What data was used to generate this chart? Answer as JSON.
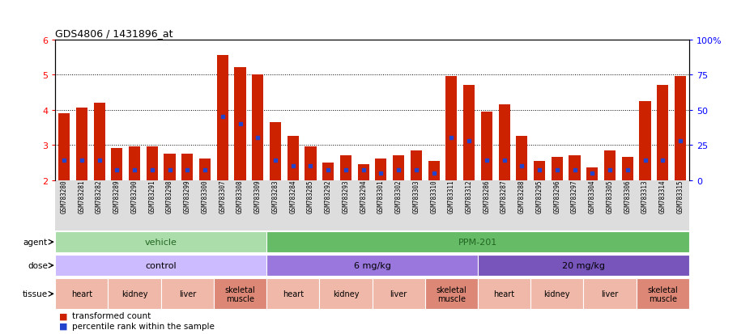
{
  "title": "GDS4806 / 1431896_at",
  "sample_ids": [
    "GSM783280",
    "GSM783281",
    "GSM783282",
    "GSM783289",
    "GSM783290",
    "GSM783291",
    "GSM783298",
    "GSM783299",
    "GSM783300",
    "GSM783307",
    "GSM783308",
    "GSM783309",
    "GSM783283",
    "GSM783284",
    "GSM783285",
    "GSM783292",
    "GSM783293",
    "GSM783294",
    "GSM783301",
    "GSM783302",
    "GSM783303",
    "GSM783310",
    "GSM783311",
    "GSM783312",
    "GSM783286",
    "GSM783287",
    "GSM783288",
    "GSM783295",
    "GSM783296",
    "GSM783297",
    "GSM783304",
    "GSM783305",
    "GSM783306",
    "GSM783313",
    "GSM783314",
    "GSM783315"
  ],
  "transformed_count": [
    3.9,
    4.05,
    4.2,
    2.9,
    2.95,
    2.95,
    2.75,
    2.75,
    2.6,
    5.55,
    5.2,
    5.0,
    3.65,
    3.25,
    2.95,
    2.5,
    2.7,
    2.45,
    2.6,
    2.7,
    2.85,
    2.55,
    4.95,
    4.7,
    3.95,
    4.15,
    3.25,
    2.55,
    2.65,
    2.7,
    2.35,
    2.85,
    2.65,
    4.25,
    4.7,
    4.95
  ],
  "percentile_rank": [
    14,
    14,
    14,
    7,
    7,
    7,
    7,
    7,
    7,
    45,
    40,
    30,
    14,
    10,
    10,
    7,
    7,
    7,
    5,
    7,
    7,
    5,
    30,
    28,
    14,
    14,
    10,
    7,
    7,
    7,
    5,
    7,
    7,
    14,
    14,
    28
  ],
  "bar_color": "#cc2200",
  "percentile_color": "#2244cc",
  "ylim_left": [
    2,
    6
  ],
  "ylim_right": [
    0,
    100
  ],
  "yticks_left": [
    2,
    3,
    4,
    5,
    6
  ],
  "yticks_right": [
    0,
    25,
    50,
    75,
    100
  ],
  "agent_labels": [
    {
      "label": "vehicle",
      "start": 0,
      "end": 12,
      "color": "#aaddaa"
    },
    {
      "label": "PPM-201",
      "start": 12,
      "end": 36,
      "color": "#66bb66"
    }
  ],
  "dose_labels": [
    {
      "label": "control",
      "start": 0,
      "end": 12,
      "color": "#ccbbff"
    },
    {
      "label": "6 mg/kg",
      "start": 12,
      "end": 24,
      "color": "#9977dd"
    },
    {
      "label": "20 mg/kg",
      "start": 24,
      "end": 36,
      "color": "#7755bb"
    }
  ],
  "tissue_groups": [
    {
      "label": "heart",
      "start": 0,
      "end": 3,
      "color": "#f0b8a8"
    },
    {
      "label": "kidney",
      "start": 3,
      "end": 6,
      "color": "#f0b8a8"
    },
    {
      "label": "liver",
      "start": 6,
      "end": 9,
      "color": "#f0b8a8"
    },
    {
      "label": "skeletal\nmuscle",
      "start": 9,
      "end": 12,
      "color": "#dd8877"
    },
    {
      "label": "heart",
      "start": 12,
      "end": 15,
      "color": "#f0b8a8"
    },
    {
      "label": "kidney",
      "start": 15,
      "end": 18,
      "color": "#f0b8a8"
    },
    {
      "label": "liver",
      "start": 18,
      "end": 21,
      "color": "#f0b8a8"
    },
    {
      "label": "skeletal\nmuscle",
      "start": 21,
      "end": 24,
      "color": "#dd8877"
    },
    {
      "label": "heart",
      "start": 24,
      "end": 27,
      "color": "#f0b8a8"
    },
    {
      "label": "kidney",
      "start": 27,
      "end": 30,
      "color": "#f0b8a8"
    },
    {
      "label": "liver",
      "start": 30,
      "end": 33,
      "color": "#f0b8a8"
    },
    {
      "label": "skeletal\nmuscle",
      "start": 33,
      "end": 36,
      "color": "#dd8877"
    }
  ],
  "legend_items": [
    {
      "label": "transformed count",
      "color": "#cc2200"
    },
    {
      "label": "percentile rank within the sample",
      "color": "#2244cc"
    }
  ],
  "xtick_bg_color": "#dddddd",
  "row_label_color": "#555555"
}
